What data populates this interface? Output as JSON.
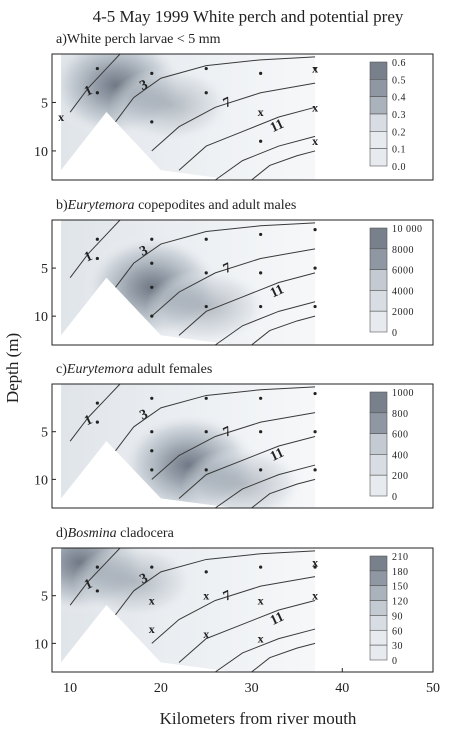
{
  "figure": {
    "title": "4-5 May 1999 White perch and potential prey",
    "ylabel": "Depth (m)",
    "xlabel": "Kilometers from river mouth",
    "x_ticks": [
      "10",
      "20",
      "30",
      "40",
      "50"
    ]
  },
  "colors": {
    "fill_levels": [
      "#ffffff",
      "#e7ebef",
      "#d7dde3",
      "#c3cad2",
      "#aab2bc",
      "#8e97a2",
      "#77808b"
    ],
    "contour": "#3a3a3a",
    "frame": "#222222"
  },
  "chart_data": [
    {
      "type": "heatmap",
      "panel_label": "a)",
      "title": "White perch larvae < 5 mm",
      "y_ticks": [
        "5",
        "10"
      ],
      "xlim": [
        8,
        50
      ],
      "ylim": [
        0,
        13
      ],
      "colorbar": {
        "min": 0.0,
        "max": 0.6,
        "labels": [
          "0.6",
          "0.5",
          "0.4",
          "0.3",
          "0.2",
          "0.1",
          "0.0"
        ]
      },
      "hotspot": {
        "x": 15,
        "y": 3.2,
        "max": 0.6
      },
      "contour_labels": [
        "1",
        "3",
        "7",
        "11"
      ],
      "stations": [
        [
          13,
          1.5
        ],
        [
          13,
          4
        ],
        [
          19,
          2
        ],
        [
          19,
          7
        ],
        [
          25,
          1.5
        ],
        [
          25,
          4
        ],
        [
          31,
          2
        ],
        [
          31,
          9
        ],
        [
          37,
          1.5
        ]
      ],
      "x_markers": [
        [
          9,
          6.5
        ],
        [
          31,
          6
        ],
        [
          37,
          1.5
        ],
        [
          37,
          5.5
        ],
        [
          37,
          9
        ]
      ]
    },
    {
      "type": "heatmap",
      "panel_label": "b)",
      "title_italic": "Eurytemora",
      "title": " copepodites and adult males",
      "y_ticks": [
        "5",
        "10"
      ],
      "xlim": [
        8,
        50
      ],
      "ylim": [
        0,
        13
      ],
      "colorbar": {
        "min": 0,
        "max": 10000,
        "labels": [
          "10 000",
          "8000",
          "6000",
          "4000",
          "2000",
          "0"
        ]
      },
      "hotspot": {
        "x": 19,
        "y": 7,
        "max": 10000
      },
      "contour_labels": [
        "1",
        "3",
        "7",
        "11"
      ],
      "stations": [
        [
          13,
          2
        ],
        [
          13,
          4
        ],
        [
          19,
          2
        ],
        [
          19,
          4.5
        ],
        [
          19,
          7
        ],
        [
          19,
          10
        ],
        [
          25,
          2
        ],
        [
          25,
          5.5
        ],
        [
          25,
          9
        ],
        [
          31,
          1.5
        ],
        [
          31,
          5.5
        ],
        [
          31,
          9
        ],
        [
          37,
          1
        ],
        [
          37,
          5
        ],
        [
          37,
          9
        ]
      ],
      "x_markers": []
    },
    {
      "type": "heatmap",
      "panel_label": "c)",
      "title_italic": "Eurytemora",
      "title": " adult females",
      "y_ticks": [
        "5",
        "10"
      ],
      "xlim": [
        8,
        50
      ],
      "ylim": [
        0,
        13
      ],
      "colorbar": {
        "min": 0,
        "max": 1000,
        "labels": [
          "1000",
          "800",
          "600",
          "400",
          "200",
          "0"
        ]
      },
      "hotspot": {
        "x": 23,
        "y": 8.5,
        "max": 1000
      },
      "contour_labels": [
        "1",
        "3",
        "7",
        "11"
      ],
      "stations": [
        [
          13,
          2
        ],
        [
          13,
          4
        ],
        [
          19,
          1.5
        ],
        [
          19,
          5
        ],
        [
          19,
          7
        ],
        [
          19,
          9
        ],
        [
          25,
          1.5
        ],
        [
          25,
          5
        ],
        [
          25,
          9
        ],
        [
          31,
          1.5
        ],
        [
          31,
          5
        ],
        [
          31,
          9
        ],
        [
          37,
          1
        ],
        [
          37,
          5
        ],
        [
          37,
          9
        ]
      ],
      "x_markers": []
    },
    {
      "type": "heatmap",
      "panel_label": "d)",
      "title_italic": "Bosmina",
      "title": " cladocera",
      "y_ticks": [
        "5",
        "10"
      ],
      "xlim": [
        8,
        50
      ],
      "ylim": [
        0,
        13
      ],
      "colorbar": {
        "min": 0,
        "max": 210,
        "labels": [
          "210",
          "180",
          "150",
          "120",
          "90",
          "60",
          "30",
          "0"
        ]
      },
      "hotspot": {
        "x": 11,
        "y": 1.5,
        "max": 210
      },
      "contour_labels": [
        "1",
        "3",
        "7",
        "11"
      ],
      "stations": [
        [
          13,
          2
        ],
        [
          13,
          4.5
        ],
        [
          19,
          2
        ],
        [
          25,
          2.5
        ],
        [
          31,
          2
        ],
        [
          37,
          2
        ]
      ],
      "x_markers": [
        [
          19,
          5.5
        ],
        [
          19,
          8.5
        ],
        [
          25,
          5
        ],
        [
          25,
          9
        ],
        [
          31,
          5.5
        ],
        [
          31,
          9.5
        ],
        [
          37,
          5
        ],
        [
          37,
          1.5
        ]
      ]
    }
  ]
}
